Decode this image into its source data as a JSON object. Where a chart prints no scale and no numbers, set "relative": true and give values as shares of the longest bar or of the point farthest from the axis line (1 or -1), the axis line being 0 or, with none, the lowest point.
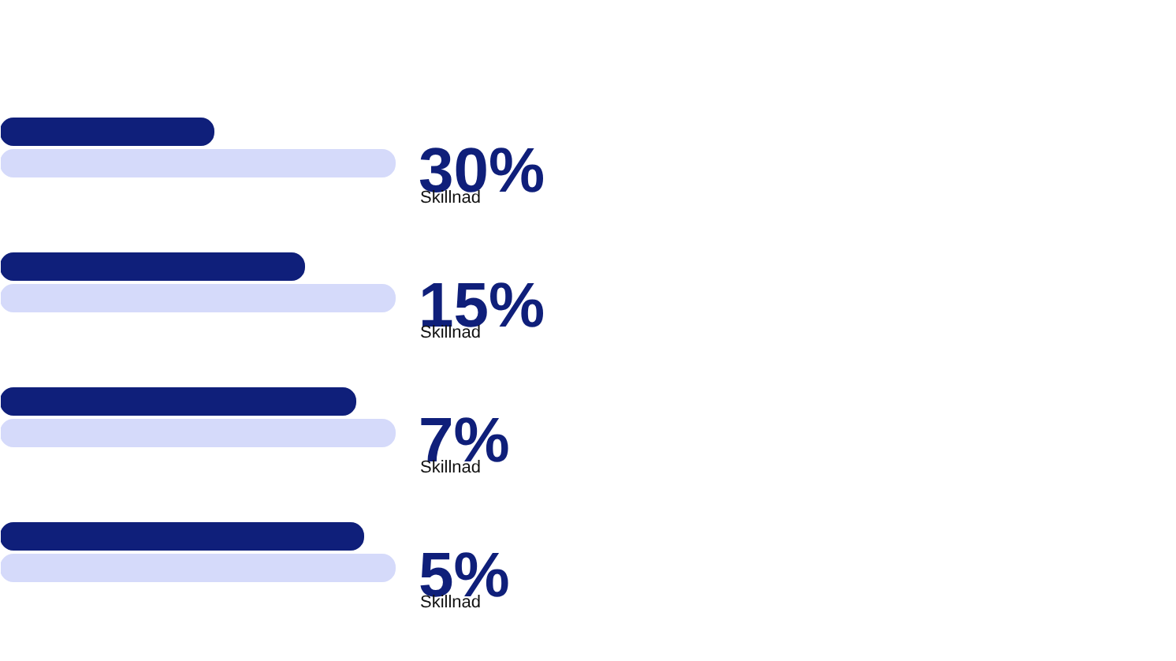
{
  "chart_data": {
    "type": "bar",
    "orientation": "horizontal",
    "relative": true,
    "categories": [
      null,
      null,
      null,
      null
    ],
    "series": [
      {
        "color": "#0f1f7a",
        "values": [
          0.54,
          0.77,
          0.9,
          0.92
        ]
      },
      {
        "color": "#d5dafa",
        "values": [
          1,
          1,
          1,
          1
        ]
      }
    ],
    "annotations": [
      "30%",
      "Skillnad",
      "15%",
      "Skillnad",
      "7%",
      "Skillnad",
      "5%",
      "Skillnad"
    ],
    "grid": false
  }
}
